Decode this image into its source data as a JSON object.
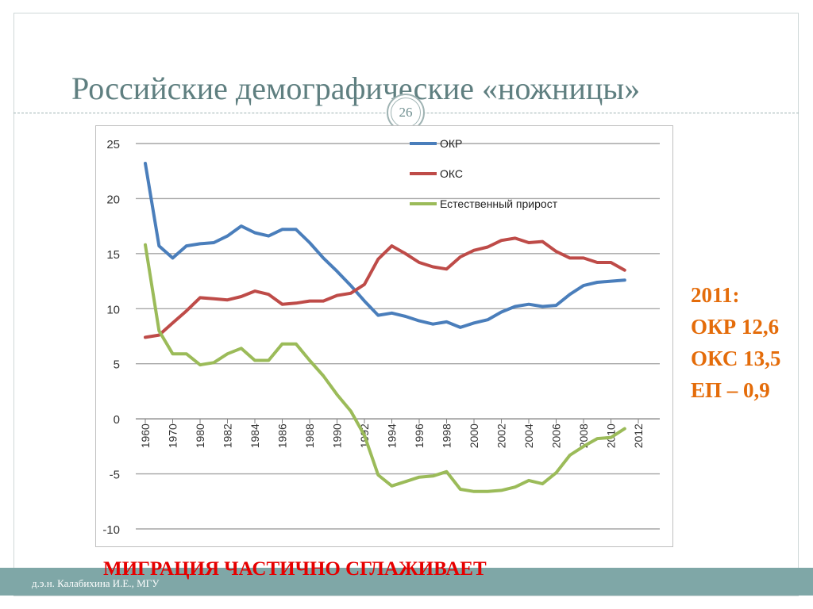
{
  "slide": {
    "title": "Российские демографические «ножницы»",
    "page_number": "26",
    "footer_author": "д.э.н. Калабихина И.Е., МГУ",
    "banner": "МИГРАЦИЯ ЧАСТИЧНО СГЛАЖИВАЕТ"
  },
  "side_note": {
    "year": "2011:",
    "okr": "ОКР 12,6",
    "oks": "ОКС 13,5",
    "ep": "ЕП – 0,9"
  },
  "chart_data": {
    "type": "line",
    "title": "",
    "xlabel": "",
    "ylabel": "",
    "ylim": [
      -10,
      25
    ],
    "xlim": [
      1960,
      2012
    ],
    "grid": true,
    "legend_position": "top-right",
    "x_ticks": [
      "1960",
      "1970",
      "1980",
      "1982",
      "1984",
      "1986",
      "1988",
      "1990",
      "1992",
      "1994",
      "1996",
      "1998",
      "2000",
      "2002",
      "2004",
      "2006",
      "2008",
      "2010",
      "2012"
    ],
    "y_ticks": [
      "25",
      "20",
      "15",
      "10",
      "5",
      "0",
      "-5",
      "-10"
    ],
    "x": [
      1960,
      1965,
      1970,
      1975,
      1980,
      1981,
      1982,
      1983,
      1984,
      1985,
      1986,
      1987,
      1988,
      1989,
      1990,
      1991,
      1992,
      1993,
      1994,
      1995,
      1996,
      1997,
      1998,
      1999,
      2000,
      2001,
      2002,
      2003,
      2004,
      2005,
      2006,
      2007,
      2008,
      2009,
      2010,
      2011
    ],
    "series": [
      {
        "name": "ОКР",
        "color": "#4a7ebb",
        "values": [
          23.2,
          15.7,
          14.6,
          15.7,
          15.9,
          16.0,
          16.6,
          17.5,
          16.9,
          16.6,
          17.2,
          17.2,
          16.0,
          14.6,
          13.4,
          12.1,
          10.7,
          9.4,
          9.6,
          9.3,
          8.9,
          8.6,
          8.8,
          8.3,
          8.7,
          9.0,
          9.7,
          10.2,
          10.4,
          10.2,
          10.3,
          11.3,
          12.1,
          12.4,
          12.5,
          12.6
        ]
      },
      {
        "name": "ОКС",
        "color": "#be4b48",
        "values": [
          7.4,
          7.6,
          8.7,
          9.8,
          11.0,
          10.9,
          10.8,
          11.1,
          11.6,
          11.3,
          10.4,
          10.5,
          10.7,
          10.7,
          11.2,
          11.4,
          12.2,
          14.5,
          15.7,
          15.0,
          14.2,
          13.8,
          13.6,
          14.7,
          15.3,
          15.6,
          16.2,
          16.4,
          16.0,
          16.1,
          15.2,
          14.6,
          14.6,
          14.2,
          14.2,
          13.5
        ]
      },
      {
        "name": "Естественный прирост",
        "color": "#9bbb59",
        "values": [
          15.8,
          8.0,
          5.9,
          5.9,
          4.9,
          5.1,
          5.9,
          6.4,
          5.3,
          5.3,
          6.8,
          6.8,
          5.3,
          3.9,
          2.2,
          0.7,
          -1.5,
          -5.1,
          -6.1,
          -5.7,
          -5.3,
          -5.2,
          -4.8,
          -6.4,
          -6.6,
          -6.6,
          -6.5,
          -6.2,
          -5.6,
          -5.9,
          -4.9,
          -3.3,
          -2.5,
          -1.8,
          -1.7,
          -0.9
        ]
      }
    ]
  }
}
